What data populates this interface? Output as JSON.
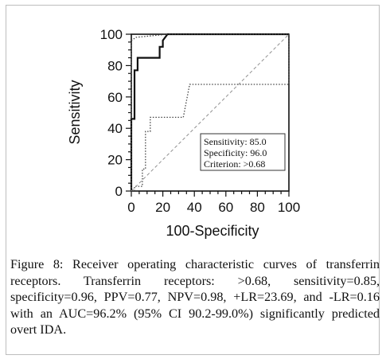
{
  "chart_data": {
    "type": "line",
    "xlabel": "100-Specificity",
    "ylabel": "Sensitivity",
    "xlim": [
      0,
      100
    ],
    "ylim": [
      0,
      100
    ],
    "xticks": [
      "0",
      "20",
      "40",
      "60",
      "80",
      "100"
    ],
    "yticks": [
      "0",
      "20",
      "40",
      "60",
      "80",
      "100"
    ],
    "series": [
      {
        "style": "solid",
        "x": [
          0,
          0,
          2,
          2,
          4,
          4,
          18,
          18,
          20,
          20,
          23,
          100
        ],
        "y": [
          0,
          46,
          46,
          77,
          77,
          85,
          85,
          92,
          92,
          96,
          100,
          100
        ]
      },
      {
        "style": "dotted-upper",
        "x": [
          0,
          0,
          3,
          23,
          100,
          100
        ],
        "y": [
          0,
          96,
          98,
          100,
          100,
          99
        ]
      },
      {
        "style": "dotted-lower",
        "x": [
          2,
          2,
          7,
          7,
          9,
          9,
          12,
          12,
          33,
          37,
          37,
          100,
          100
        ],
        "y": [
          0,
          3,
          3,
          14,
          14,
          38,
          38,
          47,
          47,
          68,
          68,
          68,
          100
        ]
      },
      {
        "style": "dashed-diagonal",
        "x": [
          0,
          100
        ],
        "y": [
          0,
          100
        ]
      }
    ],
    "annotation": {
      "sensitivity": "Sensitivity: 85.0",
      "specificity": "Specificity: 96.0",
      "criterion": "Criterion: >0.68"
    }
  },
  "caption": {
    "label": "Figure 8:",
    "text": "Receiver operating characteristic curves of transferrin receptors. Transferrin receptors: >0.68, sensitivity=0.85, specificity=0.96, PPV=0.77, NPV=0.98, +LR=23.69, and -LR=0.16 with an AUC=96.2% (95% CI 90.2-99.0%) significantly predicted overt IDA."
  }
}
